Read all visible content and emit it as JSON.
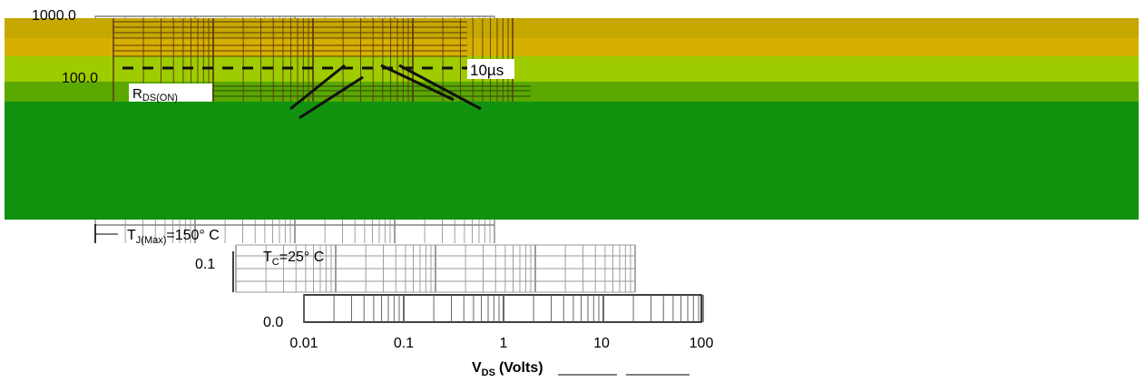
{
  "chart_data": {
    "type": "line",
    "title": "",
    "xlabel": "V",
    "xlabel_sub": "DS",
    "xlabel_unit": "(Volts)",
    "ylabel": "",
    "x_scale": "log",
    "y_scale": "log",
    "x_ticks": [
      "0.01",
      "0.1",
      "1",
      "10",
      "100"
    ],
    "y_ticks": [
      "1000.0",
      "100.0",
      "0.1",
      "0.0"
    ],
    "annotations": {
      "pulse": "10µs",
      "rds_main": "R",
      "rds_sub": "DS(ON)",
      "tj_main": "T",
      "tj_sub": "J(Max)",
      "tj_value": "=150° C",
      "tc_main": "T",
      "tc_sub": "C",
      "tc_value": "=25° C"
    },
    "colors": {
      "band_top": "#c6a800",
      "band_upper": "#d6b000",
      "band_mid": "#9ecc00",
      "band_low": "#5aa800",
      "band_main": "#11920f",
      "lines": "#222222"
    }
  }
}
